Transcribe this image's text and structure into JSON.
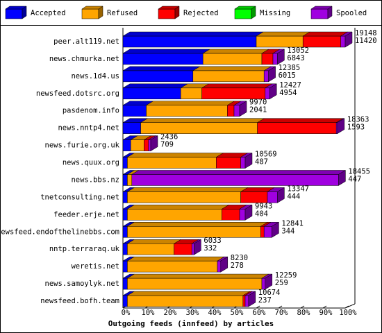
{
  "chart_data": {
    "type": "stacked-bar-3d",
    "orientation": "horizontal",
    "xlabel": "Outgoing feeds (innfeed) by articles",
    "categories": [
      "peer.alt119.net",
      "news.chmurka.net",
      "news.1d4.us",
      "newsfeed.dotsrc.org",
      "pasdenom.info",
      "news.nntp4.net",
      "news.furie.org.uk",
      "news.quux.org",
      "news.bbs.nz",
      "tnetconsulting.net",
      "feeder.erje.net",
      "newsfeed.endofthelinebbs.com",
      "nntp.terraraq.uk",
      "weretis.net",
      "news.samoylyk.net",
      "newsfeed.bofh.team"
    ],
    "series": [
      {
        "name": "Accepted",
        "color": "#0000ff",
        "values": [
          60,
          36,
          31.5,
          26,
          10.5,
          8,
          3.5,
          2,
          2,
          2,
          2,
          2,
          2,
          2,
          2,
          2
        ]
      },
      {
        "name": "Refused",
        "color": "#ffa500",
        "values": [
          21,
          26.5,
          32,
          9.5,
          36.5,
          52.5,
          6,
          40,
          2,
          51,
          42.5,
          60,
          21,
          40.5,
          60.5,
          52
        ]
      },
      {
        "name": "Rejected",
        "color": "#ff0000",
        "values": [
          17,
          5,
          0,
          28.5,
          3,
          35.5,
          2,
          11,
          0,
          12,
          8,
          1.5,
          8,
          0,
          0,
          1
        ]
      },
      {
        "name": "Missing",
        "color": "#00ff00",
        "values": [
          0,
          0,
          0,
          0,
          0,
          0,
          0,
          0,
          0,
          0,
          0,
          0,
          0,
          0,
          0,
          0
        ]
      },
      {
        "name": "Spooled",
        "color": "#a000e0",
        "values": [
          2,
          2,
          2,
          2,
          2.5,
          0.5,
          1,
          2,
          93,
          4.5,
          2.5,
          3.5,
          1,
          1.5,
          1.5,
          1.5
        ]
      }
    ],
    "bar_labels": [
      [
        19148,
        11420
      ],
      [
        13052,
        6843
      ],
      [
        12385,
        6015
      ],
      [
        12427,
        4954
      ],
      [
        9970,
        2041
      ],
      [
        18363,
        1593
      ],
      [
        2436,
        709
      ],
      [
        10569,
        487
      ],
      [
        18455,
        447
      ],
      [
        13347,
        444
      ],
      [
        9943,
        404
      ],
      [
        12841,
        344
      ],
      [
        6033,
        332
      ],
      [
        8230,
        278
      ],
      [
        12259,
        259
      ],
      [
        10674,
        237
      ]
    ],
    "xlim": [
      0,
      100
    ],
    "xticks": [
      {
        "value": 0,
        "label": "0%"
      },
      {
        "value": 10,
        "label": "10%"
      },
      {
        "value": 20,
        "label": "20%"
      },
      {
        "value": 30,
        "label": "30%"
      },
      {
        "value": 40,
        "label": "40%"
      },
      {
        "value": 50,
        "label": "50%"
      },
      {
        "value": 60,
        "label": "60%"
      },
      {
        "value": 70,
        "label": "70%"
      },
      {
        "value": 80,
        "label": "80%"
      },
      {
        "value": 90,
        "label": "90%"
      },
      {
        "value": 100,
        "label": "100%"
      }
    ],
    "legend": "top"
  }
}
